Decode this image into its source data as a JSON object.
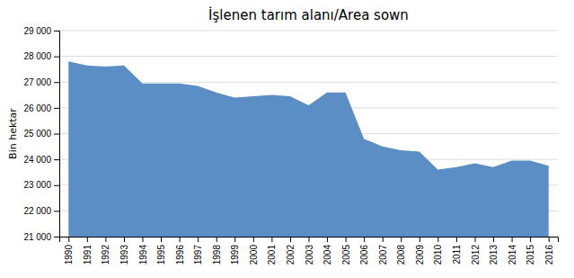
{
  "chart_data": {
    "type": "area",
    "title": "İşlenen tarım alanı/Area sown",
    "ylabel": "Bin hektar",
    "x": [
      1990,
      1991,
      1992,
      1993,
      1994,
      1995,
      1996,
      1997,
      1998,
      1999,
      2000,
      2001,
      2002,
      2003,
      2004,
      2005,
      2006,
      2007,
      2008,
      2009,
      2010,
      2011,
      2012,
      2013,
      2014,
      2015,
      2016
    ],
    "values": [
      27800,
      27650,
      27600,
      27650,
      26950,
      26950,
      26950,
      26850,
      26600,
      26400,
      26450,
      26500,
      26450,
      26100,
      26600,
      26600,
      24800,
      24500,
      24350,
      24300,
      23600,
      23700,
      23850,
      23700,
      23950,
      23950,
      23750
    ],
    "color": "#5b8ec4",
    "xlim": [
      1989.5,
      2016.5
    ],
    "xticks": [
      1990,
      1991,
      1992,
      1993,
      1994,
      1995,
      1996,
      1997,
      1998,
      1999,
      2000,
      2001,
      2002,
      2003,
      2004,
      2005,
      2006,
      2007,
      2008,
      2009,
      2010,
      2011,
      2012,
      2013,
      2014,
      2015,
      2016
    ],
    "ylim": [
      21000,
      29000
    ],
    "yticks": [
      {
        "value": 21000,
        "label": "21 000"
      },
      {
        "value": 22000,
        "label": "22 000"
      },
      {
        "value": 23000,
        "label": "23 000"
      },
      {
        "value": 24000,
        "label": "24 000"
      },
      {
        "value": 25000,
        "label": "25 000"
      },
      {
        "value": 26000,
        "label": "26 000"
      },
      {
        "value": 27000,
        "label": "27 000"
      },
      {
        "value": 28000,
        "label": "28 000"
      },
      {
        "value": 29000,
        "label": "29 000"
      }
    ],
    "grid": true
  }
}
